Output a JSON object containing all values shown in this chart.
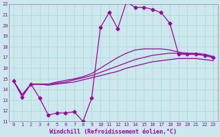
{
  "xlabel": "Windchill (Refroidissement éolien,°C)",
  "xlim": [
    -0.5,
    23.5
  ],
  "ylim": [
    11,
    22
  ],
  "xticks": [
    0,
    1,
    2,
    3,
    4,
    5,
    6,
    7,
    8,
    9,
    10,
    11,
    12,
    13,
    14,
    15,
    16,
    17,
    18,
    19,
    20,
    21,
    22,
    23
  ],
  "yticks": [
    11,
    12,
    13,
    14,
    15,
    16,
    17,
    18,
    19,
    20,
    21,
    22
  ],
  "background_color": "#cce8ee",
  "grid_color": "#aad4d4",
  "line_color": "#990099",
  "line1_x": [
    0,
    1,
    2,
    3,
    4,
    5,
    6,
    7,
    8,
    9,
    10,
    11,
    12,
    13,
    14,
    15,
    16,
    17,
    18,
    19,
    20,
    21,
    22,
    23
  ],
  "line1_y": [
    14.8,
    13.3,
    14.5,
    13.2,
    11.6,
    11.8,
    11.8,
    11.9,
    11.0,
    13.2,
    19.8,
    21.2,
    19.7,
    22.2,
    21.7,
    21.7,
    21.5,
    21.2,
    20.2,
    17.3,
    17.3,
    17.3,
    17.2,
    17.0
  ],
  "line2_x": [
    0,
    1,
    2,
    3,
    4,
    5,
    6,
    7,
    8,
    9,
    10,
    11,
    12,
    13,
    14,
    15,
    16,
    17,
    18,
    19,
    20,
    21,
    22,
    23
  ],
  "line2_y": [
    14.8,
    13.5,
    14.5,
    14.5,
    14.5,
    14.7,
    14.85,
    15.0,
    15.2,
    15.5,
    16.0,
    16.5,
    17.0,
    17.4,
    17.7,
    17.8,
    17.8,
    17.8,
    17.7,
    17.5,
    17.4,
    17.4,
    17.3,
    17.1
  ],
  "line3_x": [
    0,
    1,
    2,
    3,
    4,
    5,
    6,
    7,
    8,
    9,
    10,
    11,
    12,
    13,
    14,
    15,
    16,
    17,
    18,
    19,
    20,
    21,
    22,
    23
  ],
  "line3_y": [
    14.8,
    13.5,
    14.5,
    14.5,
    14.5,
    14.6,
    14.7,
    14.9,
    15.1,
    15.3,
    15.6,
    15.9,
    16.2,
    16.5,
    16.8,
    17.0,
    17.2,
    17.3,
    17.4,
    17.4,
    17.3,
    17.3,
    17.2,
    17.0
  ],
  "line4_x": [
    0,
    1,
    2,
    3,
    4,
    5,
    6,
    7,
    8,
    9,
    10,
    11,
    12,
    13,
    14,
    15,
    16,
    17,
    18,
    19,
    20,
    21,
    22,
    23
  ],
  "line4_y": [
    14.8,
    13.5,
    14.5,
    14.5,
    14.4,
    14.5,
    14.6,
    14.7,
    14.9,
    15.1,
    15.3,
    15.5,
    15.7,
    16.0,
    16.2,
    16.4,
    16.6,
    16.7,
    16.8,
    16.9,
    16.9,
    16.9,
    16.8,
    16.7
  ],
  "marker": "D",
  "marker_size": 2.5,
  "line_width": 0.9,
  "tick_fontsize": 5.0,
  "label_fontsize": 6.0
}
